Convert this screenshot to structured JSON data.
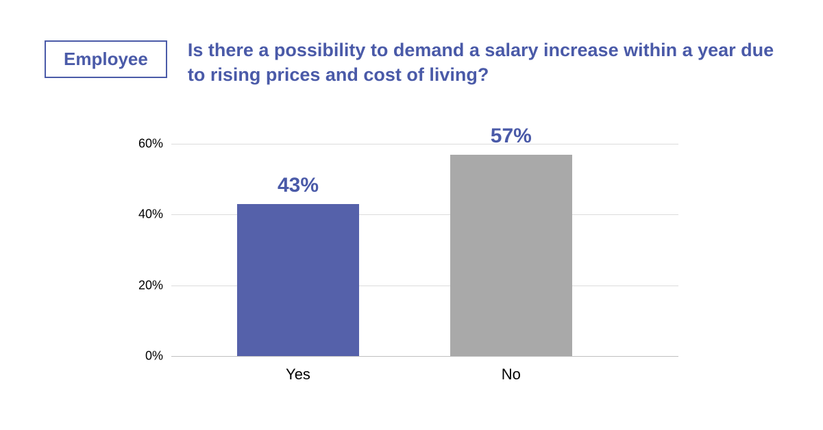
{
  "header": {
    "badge": "Employee",
    "title": "Is there a possibility to demand a salary increase within a year due to rising prices and cost of living?"
  },
  "chart": {
    "type": "bar",
    "ylim": [
      0,
      60
    ],
    "ytick_step": 20,
    "yticks": [
      {
        "value": 0,
        "label": "0%"
      },
      {
        "value": 20,
        "label": "20%"
      },
      {
        "value": 40,
        "label": "40%"
      },
      {
        "value": 60,
        "label": "60%"
      }
    ],
    "series": [
      {
        "category": "Yes",
        "value": 43,
        "display": "43%",
        "color": "#5561aa",
        "center_pct": 25,
        "width_pct": 24
      },
      {
        "category": "No",
        "value": 57,
        "display": "57%",
        "color": "#a9a9a9",
        "center_pct": 67,
        "width_pct": 24
      }
    ],
    "grid_color": "#dcdcdc",
    "axis_color": "#bfbfbf",
    "label_color": "#4a5aa8",
    "label_fontsize": 30,
    "tick_fontsize": 18,
    "xlabel_fontsize": 22,
    "background_color": "#ffffff"
  }
}
